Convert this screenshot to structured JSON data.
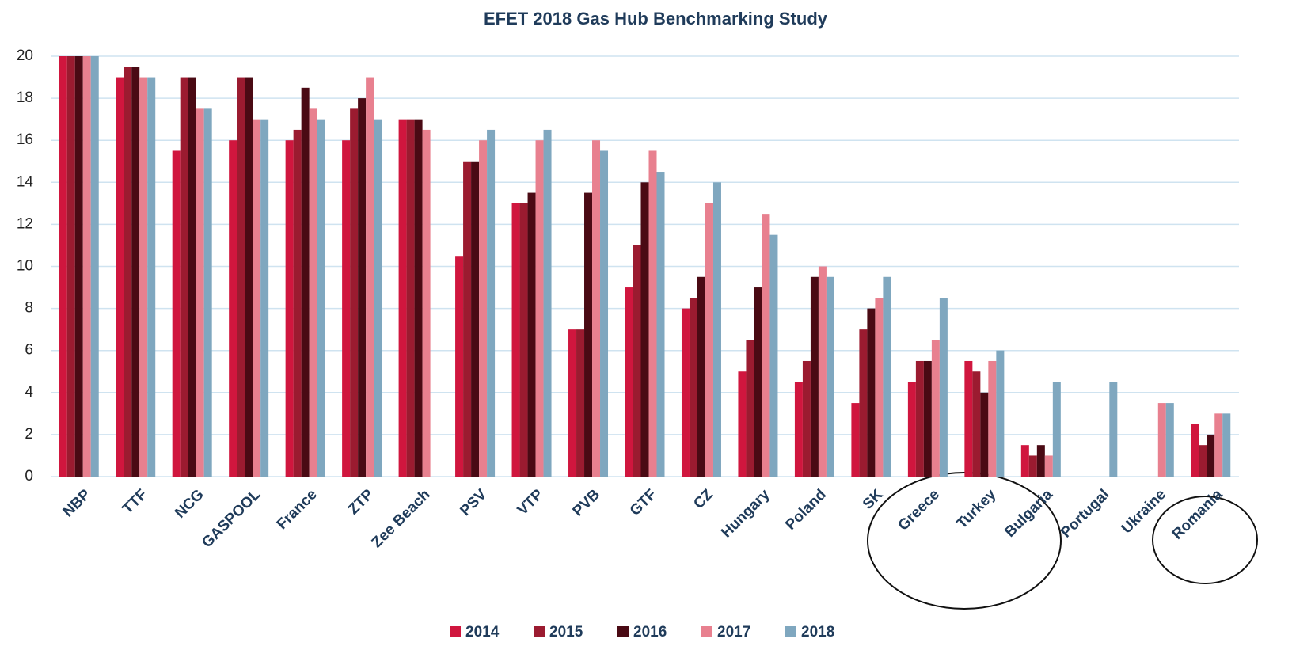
{
  "chart_data": {
    "type": "bar",
    "title": "EFET 2018 Gas Hub Benchmarking Study",
    "categories": [
      "NBP",
      "TTF",
      "NCG",
      "GASPOOL",
      "France",
      "ZTP",
      "Zee Beach",
      "PSV",
      "VTP",
      "PVB",
      "GTF",
      "CZ",
      "Hungary",
      "Poland",
      "SK",
      "Greece",
      "Turkey",
      "Bulgaria",
      "Portugal",
      "Ukraine",
      "Romania"
    ],
    "series": [
      {
        "name": "2014",
        "color": "#d0163e",
        "values": [
          20,
          19,
          15.5,
          16,
          16,
          16,
          17,
          10.5,
          13,
          7,
          9,
          8,
          5,
          4.5,
          3.5,
          4.5,
          5.5,
          1.5,
          null,
          null,
          2.5
        ]
      },
      {
        "name": "2015",
        "color": "#9b1b30",
        "values": [
          20,
          19.5,
          19,
          19,
          16.5,
          17.5,
          17,
          15,
          13,
          7,
          11,
          8.5,
          6.5,
          5.5,
          7,
          5.5,
          5,
          1,
          null,
          null,
          1.5
        ]
      },
      {
        "name": "2016",
        "color": "#4a0a14",
        "values": [
          20,
          19.5,
          19,
          19,
          18.5,
          18,
          17,
          15,
          13.5,
          13.5,
          14,
          9.5,
          9,
          9.5,
          8,
          5.5,
          4,
          1.5,
          null,
          null,
          2
        ]
      },
      {
        "name": "2017",
        "color": "#e8808f",
        "values": [
          20,
          19,
          17.5,
          17,
          17.5,
          19,
          16.5,
          16,
          16,
          16,
          15.5,
          13,
          12.5,
          10,
          8.5,
          6.5,
          5.5,
          1,
          null,
          3.5,
          3
        ]
      },
      {
        "name": "2018",
        "color": "#7fa7bf",
        "values": [
          20,
          19,
          17.5,
          17,
          17,
          17,
          null,
          16.5,
          16.5,
          15.5,
          14.5,
          14,
          11.5,
          9.5,
          9.5,
          8.5,
          6,
          4.5,
          4.5,
          3.5,
          3
        ]
      }
    ],
    "ylim": [
      0,
      20
    ],
    "yticks": [
      0,
      2,
      4,
      6,
      8,
      10,
      12,
      14,
      16,
      18,
      20
    ],
    "grid": true,
    "legend": "bottom"
  }
}
